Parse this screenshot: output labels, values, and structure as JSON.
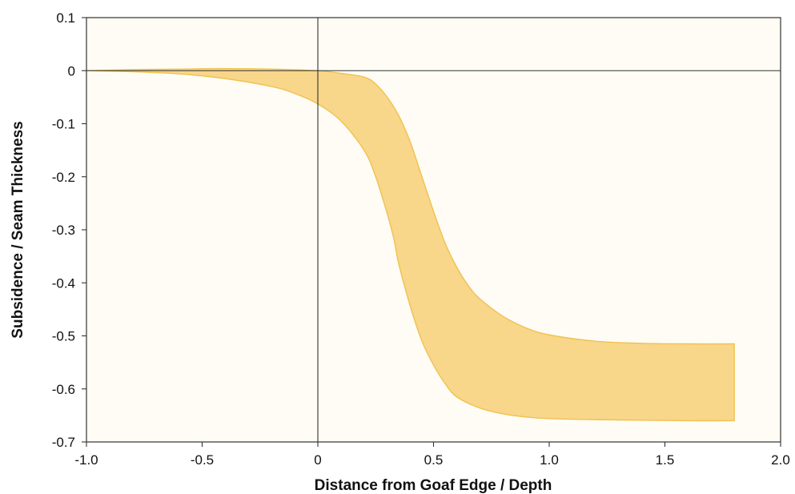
{
  "chart_data": {
    "type": "area",
    "title": "",
    "xlabel": "Distance from Goaf Edge / Depth",
    "ylabel": "Subsidence / Seam Thickness",
    "xlim": [
      -1.0,
      2.0
    ],
    "ylim": [
      -0.7,
      0.1
    ],
    "xticks": [
      -1.0,
      -0.5,
      0,
      0.5,
      1.0,
      1.5,
      2.0
    ],
    "xtick_labels": [
      "-1.0",
      "-0.5",
      "0",
      "0.5",
      "1.0",
      "1.5",
      "2.0"
    ],
    "yticks": [
      0.1,
      0,
      -0.1,
      -0.2,
      -0.3,
      -0.4,
      -0.5,
      -0.6,
      -0.7
    ],
    "ytick_labels": [
      "0.1",
      "0",
      "-0.1",
      "-0.2",
      "-0.3",
      "-0.4",
      "-0.5",
      "-0.6",
      "-0.7"
    ],
    "grid": false,
    "reference_lines": {
      "x": 0,
      "y": 0
    },
    "colors": {
      "plot_background": "#fefcf5",
      "band_fill": "#f8d68a",
      "band_stroke": "#f0c04a",
      "axis": "#333333"
    },
    "series": [
      {
        "role": "upper_bound",
        "x": [
          -1.0,
          -0.8,
          -0.6,
          -0.4,
          -0.2,
          0,
          0.1,
          0.2,
          0.25,
          0.3,
          0.35,
          0.4,
          0.45,
          0.5,
          0.55,
          0.6,
          0.65,
          0.7,
          0.8,
          0.9,
          1.0,
          1.2,
          1.4,
          1.6,
          1.8
        ],
        "y": [
          0,
          0.002,
          0.003,
          0.004,
          0.003,
          0,
          -0.005,
          -0.012,
          -0.025,
          -0.05,
          -0.085,
          -0.135,
          -0.2,
          -0.265,
          -0.325,
          -0.37,
          -0.405,
          -0.43,
          -0.463,
          -0.485,
          -0.498,
          -0.51,
          -0.514,
          -0.515,
          -0.515
        ]
      },
      {
        "role": "lower_bound",
        "x": [
          -1.0,
          -0.8,
          -0.6,
          -0.4,
          -0.2,
          -0.1,
          0,
          0.1,
          0.2,
          0.25,
          0.3,
          0.33,
          0.35,
          0.4,
          0.45,
          0.5,
          0.55,
          0.6,
          0.7,
          0.8,
          0.9,
          1.0,
          1.2,
          1.4,
          1.6,
          1.8
        ],
        "y": [
          0,
          -0.002,
          -0.006,
          -0.015,
          -0.03,
          -0.043,
          -0.063,
          -0.095,
          -0.15,
          -0.2,
          -0.27,
          -0.32,
          -0.365,
          -0.445,
          -0.51,
          -0.555,
          -0.59,
          -0.615,
          -0.636,
          -0.647,
          -0.653,
          -0.656,
          -0.658,
          -0.659,
          -0.66,
          -0.66
        ]
      }
    ]
  }
}
